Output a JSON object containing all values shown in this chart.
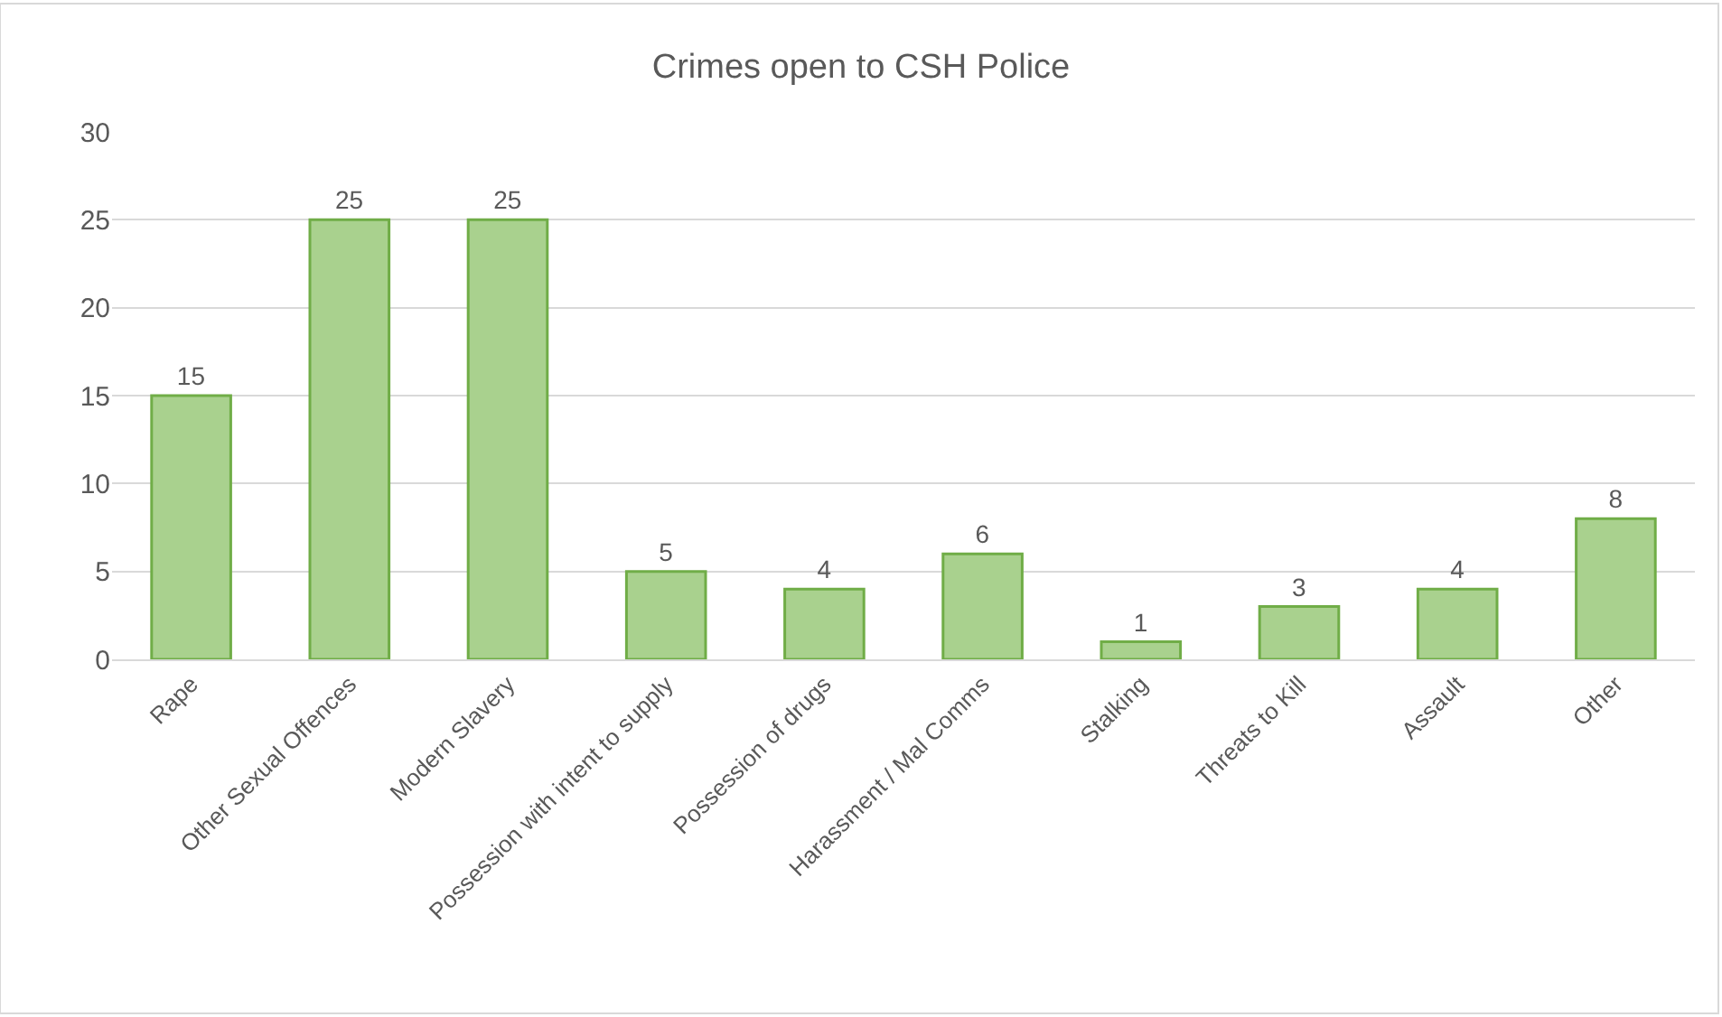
{
  "chart_data": {
    "type": "bar",
    "title": "Crimes open to CSH Police",
    "categories": [
      "Rape",
      "Other Sexual Offences",
      "Modern Slavery",
      "Possession with intent to supply",
      "Possession of drugs",
      "Harassment / Mal Comms",
      "Stalking",
      "Threats to Kill",
      "Assault",
      "Other"
    ],
    "values": [
      15,
      25,
      25,
      5,
      4,
      6,
      1,
      3,
      4,
      8
    ],
    "color": "#a9d18e",
    "ylim": [
      0,
      30
    ],
    "yticks": [
      0,
      5,
      10,
      15,
      20,
      25,
      30
    ],
    "grid": "y",
    "data_labels": true
  }
}
